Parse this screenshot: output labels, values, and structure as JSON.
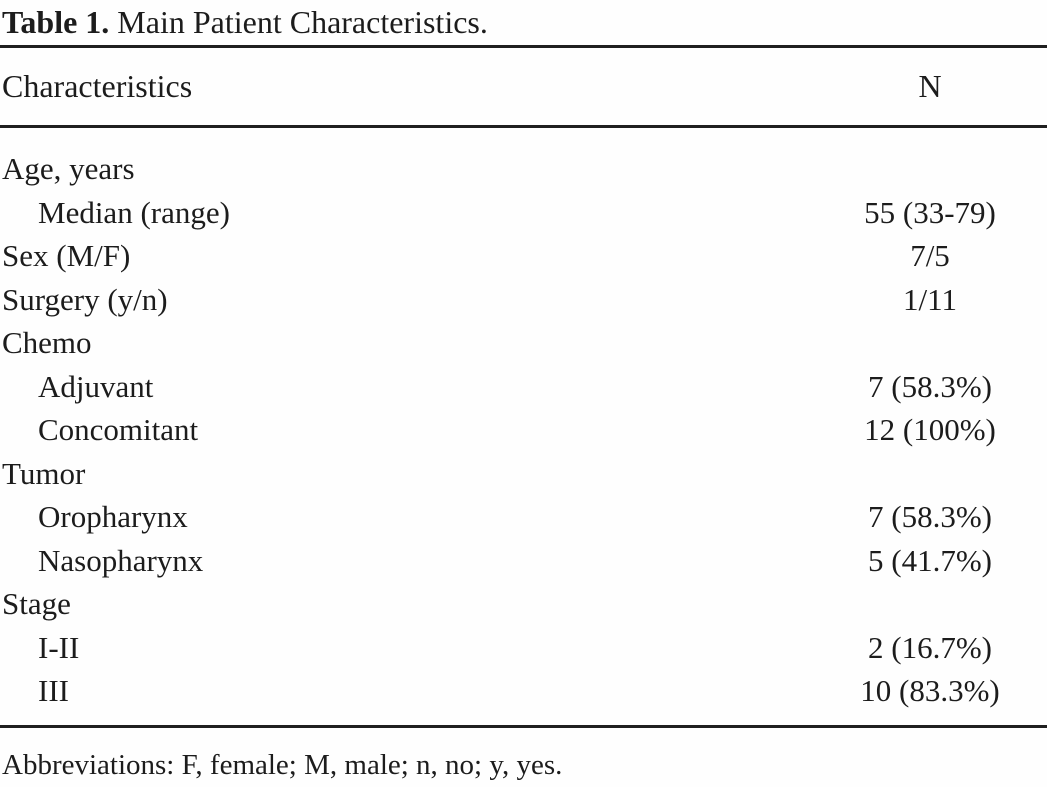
{
  "title": {
    "label": "Table 1.",
    "text": " Main Patient Characteristics."
  },
  "table": {
    "columns": {
      "left": "Characteristics",
      "right": "N"
    },
    "rows": [
      {
        "label": "Age, years",
        "indent": false,
        "value": ""
      },
      {
        "label": "Median (range)",
        "indent": true,
        "value": "55 (33-79)"
      },
      {
        "label": "Sex (M/F)",
        "indent": false,
        "value": "7/5"
      },
      {
        "label": "Surgery (y/n)",
        "indent": false,
        "value": "1/11"
      },
      {
        "label": "Chemo",
        "indent": false,
        "value": ""
      },
      {
        "label": "Adjuvant",
        "indent": true,
        "value": "7 (58.3%)"
      },
      {
        "label": "Concomitant",
        "indent": true,
        "value": "12 (100%)"
      },
      {
        "label": "Tumor",
        "indent": false,
        "value": ""
      },
      {
        "label": "Oropharynx",
        "indent": true,
        "value": "7 (58.3%)"
      },
      {
        "label": "Nasopharynx",
        "indent": true,
        "value": "5 (41.7%)"
      },
      {
        "label": "Stage",
        "indent": false,
        "value": ""
      },
      {
        "label": "I-II",
        "indent": true,
        "value": "2 (16.7%)"
      },
      {
        "label": "III",
        "indent": true,
        "value": "10 (83.3%)"
      }
    ]
  },
  "footnote": "Abbreviations: F, female; M, male; n, no; y, yes.",
  "colors": {
    "text": "#1c1c1c",
    "rule": "#1f1f1f",
    "background": "#fefefe"
  }
}
